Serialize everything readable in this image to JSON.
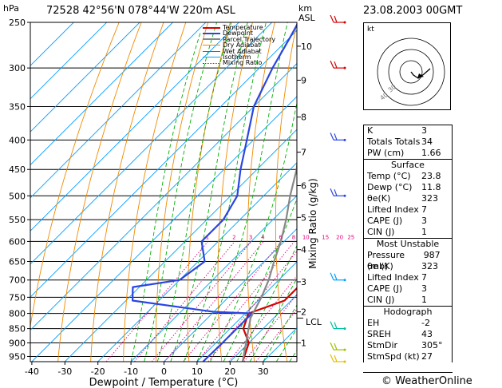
{
  "header": {
    "station_info": "72528  42°56'N  078°44'W  220m  ASL",
    "datetime": "23.08.2003  00GMT",
    "left_unit": "hPa",
    "km_unit": "km",
    "asl_unit": "ASL"
  },
  "footer": {
    "brand": "© WeatherOnline"
  },
  "chart_data": {
    "type": "line",
    "title": "",
    "xlabel": "Dewpoint / Temperature (°C)",
    "ylabel": "hPa",
    "right_axis_label": "Mixing Ratio (g/kg)",
    "xlim": [
      -40,
      40
    ],
    "ylim_hpa": [
      970,
      250
    ],
    "x_ticks": [
      -40,
      -30,
      -20,
      -10,
      0,
      10,
      20,
      30
    ],
    "pressure_ticks": [
      250,
      300,
      350,
      400,
      450,
      500,
      550,
      600,
      650,
      700,
      750,
      800,
      850,
      900,
      950
    ],
    "km_ticks": [
      {
        "km": "10",
        "hpa": 275
      },
      {
        "km": "9",
        "hpa": 315
      },
      {
        "km": "8",
        "hpa": 365
      },
      {
        "km": "7",
        "hpa": 420
      },
      {
        "km": "6",
        "hpa": 480
      },
      {
        "km": "5",
        "hpa": 545
      },
      {
        "km": "4",
        "hpa": 620
      },
      {
        "km": "3",
        "hpa": 705
      },
      {
        "km": "2",
        "hpa": 795
      },
      {
        "km": "1",
        "hpa": 900
      }
    ],
    "lcl_label": "LCL",
    "lcl_hpa": 815,
    "mixing_ratio_labels": [
      "1",
      "2",
      "3",
      "4",
      "6",
      "8",
      "10",
      "15",
      "20",
      "25"
    ],
    "legend": [
      "Temperature",
      "Dewpoint",
      "Parcel Trajectory",
      "Dry Adiabat",
      "Wet Adiabat",
      "Isotherm",
      "Mixing Ratio"
    ],
    "colors": {
      "temperature": "#d40000",
      "dewpoint": "#2a45e0",
      "parcel": "#888888",
      "dry_adiabat": "#ef8a00",
      "wet_adiabat": "#00b000",
      "isotherm": "#00a0ff",
      "mixing_ratio": "#e0007a"
    },
    "series": [
      {
        "name": "Temperature",
        "points": [
          [
            23.8,
            970
          ],
          [
            20,
            900
          ],
          [
            14,
            850
          ],
          [
            11,
            800
          ],
          [
            18,
            760
          ],
          [
            18,
            700
          ],
          [
            14,
            650
          ],
          [
            10,
            600
          ],
          [
            6,
            550
          ],
          [
            3,
            500
          ],
          [
            -5,
            450
          ],
          [
            -12,
            400
          ],
          [
            -20,
            350
          ],
          [
            -25,
            300
          ],
          [
            -30,
            250
          ]
        ]
      },
      {
        "name": "Dewpoint",
        "points": [
          [
            11.8,
            970
          ],
          [
            12,
            900
          ],
          [
            12,
            850
          ],
          [
            12,
            800
          ],
          [
            0,
            795
          ],
          [
            -28,
            760
          ],
          [
            -32,
            720
          ],
          [
            -20,
            700
          ],
          [
            -18,
            650
          ],
          [
            -25,
            600
          ],
          [
            -25,
            550
          ],
          [
            -28,
            500
          ],
          [
            -35,
            450
          ],
          [
            -42,
            400
          ],
          [
            -50,
            350
          ],
          [
            -56,
            300
          ],
          [
            -60,
            265
          ],
          [
            -62,
            250
          ]
        ]
      },
      {
        "name": "Parcel Trajectory",
        "points": [
          [
            23.8,
            970
          ],
          [
            13,
            815
          ],
          [
            10,
            750
          ],
          [
            7,
            700
          ],
          [
            3,
            650
          ],
          [
            -1,
            600
          ],
          [
            -6,
            550
          ],
          [
            -12,
            500
          ],
          [
            -18,
            450
          ],
          [
            -26,
            400
          ],
          [
            -35,
            350
          ],
          [
            -44,
            300
          ],
          [
            -54,
            250
          ]
        ]
      }
    ],
    "wind_barbs_hpa": [
      250,
      300,
      400,
      500,
      700,
      850,
      925,
      970
    ]
  },
  "hodograph": {
    "label": "kt",
    "ring_labels": [
      "40",
      "30"
    ]
  },
  "indices": {
    "basic": [
      {
        "label": "K",
        "value": "3"
      },
      {
        "label": "Totals Totals",
        "value": "34"
      },
      {
        "label": "PW (cm)",
        "value": "1.66"
      }
    ],
    "surface_title": "Surface",
    "surface": [
      {
        "label": "Temp (°C)",
        "value": "23.8"
      },
      {
        "label": "Dewp (°C)",
        "value": "11.8"
      },
      {
        "label": "θe(K)",
        "value": "323"
      },
      {
        "label": "Lifted Index",
        "value": "7"
      },
      {
        "label": "CAPE (J)",
        "value": "3"
      },
      {
        "label": "CIN (J)",
        "value": "1"
      }
    ],
    "unstable_title": "Most Unstable",
    "unstable": [
      {
        "label": "Pressure (mb)",
        "value": "987"
      },
      {
        "label": "θe (K)",
        "value": "323"
      },
      {
        "label": "Lifted Index",
        "value": "7"
      },
      {
        "label": "CAPE (J)",
        "value": "3"
      },
      {
        "label": "CIN (J)",
        "value": "1"
      }
    ],
    "hodograph_title": "Hodograph",
    "hodo": [
      {
        "label": "EH",
        "value": "-2"
      },
      {
        "label": "SREH",
        "value": "43"
      },
      {
        "label": "StmDir",
        "value": "305°"
      },
      {
        "label": "StmSpd (kt)",
        "value": "27"
      }
    ]
  }
}
